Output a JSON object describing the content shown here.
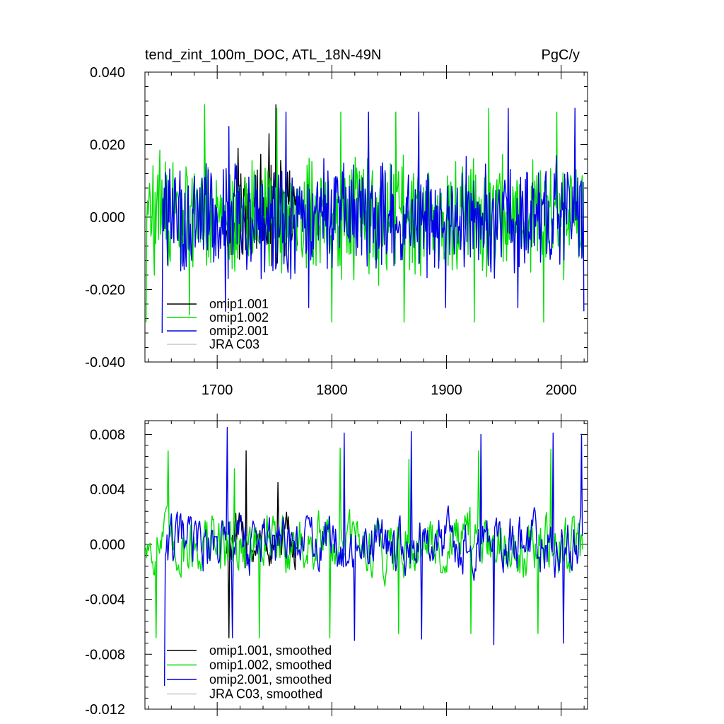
{
  "chart_data": [
    {
      "type": "line",
      "title_left": "tend_zint_100m_DOC, ATL_18N-49N",
      "title_right": "PgC/y",
      "xlim": [
        1637,
        2023
      ],
      "ylim": [
        -0.04,
        0.04
      ],
      "y_ticks": [
        -0.04,
        -0.02,
        0.0,
        0.02,
        0.04
      ],
      "y_tick_labels": [
        "-0.040",
        "-0.020",
        "0.000",
        "0.020",
        "0.040"
      ],
      "x_ticks": [
        1700,
        1800,
        1900,
        2000
      ],
      "x_tick_labels": [
        "1700",
        "1800",
        "1900",
        "2000"
      ],
      "legend_position": "lower-left",
      "series": [
        {
          "name": "omip1.001",
          "color": "#000000",
          "x_start": 1708,
          "x_end": 1770,
          "amplitude": 0.012,
          "peaks": [
            [
              1718,
              0.019
            ],
            [
              1735,
              0.013
            ],
            [
              1745,
              0.023
            ],
            [
              1751,
              0.031
            ]
          ]
        },
        {
          "name": "omip1.002",
          "color": "#00e000",
          "x_start": 1638,
          "x_end": 2019,
          "amplitude": 0.013,
          "peaks": [
            [
              1689,
              0.031
            ],
            [
              1752,
              0.03
            ],
            [
              1808,
              0.029
            ],
            [
              1856,
              0.029
            ],
            [
              1937,
              0.03
            ],
            [
              1996,
              0.029
            ]
          ],
          "troughs": [
            [
              1638,
              -0.029
            ],
            [
              1676,
              -0.027
            ],
            [
              1800,
              -0.029
            ],
            [
              1863,
              -0.029
            ],
            [
              1924,
              -0.029
            ],
            [
              1985,
              -0.029
            ]
          ]
        },
        {
          "name": "omip2.001",
          "color": "#0000e8",
          "x_start": 1652,
          "x_end": 2020,
          "amplitude": 0.012,
          "peaks": [
            [
              1710,
              0.025
            ],
            [
              1760,
              0.029
            ],
            [
              1832,
              0.029
            ],
            [
              1876,
              0.029
            ],
            [
              1954,
              0.03
            ],
            [
              2012,
              0.03
            ]
          ],
          "troughs": [
            [
              1652,
              -0.032
            ],
            [
              1707,
              -0.026
            ],
            [
              1780,
              -0.025
            ],
            [
              1899,
              -0.025
            ],
            [
              1962,
              -0.025
            ],
            [
              2020,
              -0.026
            ]
          ]
        },
        {
          "name": "JRA C03",
          "color": "#c8c8c8",
          "x_start": null,
          "x_end": null
        }
      ]
    },
    {
      "type": "line",
      "xlim": [
        1637,
        2023
      ],
      "ylim": [
        -0.012,
        0.009
      ],
      "y_ticks": [
        -0.012,
        -0.008,
        -0.004,
        0.0,
        0.004,
        0.008
      ],
      "y_tick_labels": [
        "-0.012",
        "-0.008",
        "-0.004",
        "0.000",
        "0.004",
        "0.008"
      ],
      "x_ticks": [
        1700,
        1800,
        1900,
        2000
      ],
      "legend_position": "lower-left",
      "series": [
        {
          "name": "omip1.001, smoothed",
          "color": "#000000",
          "x_start": 1708,
          "x_end": 1770,
          "amplitude": 0.002,
          "peaks": [
            [
              1725,
              0.0068
            ],
            [
              1753,
              0.0045
            ]
          ],
          "troughs": [
            [
              1710,
              -0.0068
            ]
          ]
        },
        {
          "name": "omip1.002, smoothed",
          "color": "#00e000",
          "x_start": 1637,
          "x_end": 2019,
          "amplitude": 0.0022,
          "peaks": [
            [
              1657,
              0.0068
            ],
            [
              1715,
              0.0055
            ],
            [
              1807,
              0.007
            ],
            [
              1867,
              0.0062
            ],
            [
              1928,
              0.0068
            ],
            [
              1991,
              0.0069
            ]
          ],
          "troughs": [
            [
              1647,
              -0.0068
            ],
            [
              1737,
              -0.0068
            ],
            [
              1798,
              -0.0068
            ],
            [
              1858,
              -0.0065
            ],
            [
              1921,
              -0.0065
            ],
            [
              1980,
              -0.0065
            ]
          ]
        },
        {
          "name": "omip2.001, smoothed",
          "color": "#0000e8",
          "x_start": 1654,
          "x_end": 2019,
          "amplitude": 0.0021,
          "peaks": [
            [
              1709,
              0.0085
            ],
            [
              1811,
              0.0081
            ],
            [
              1869,
              0.0082
            ],
            [
              1930,
              0.008
            ],
            [
              1993,
              0.0081
            ],
            [
              2018,
              0.008
            ]
          ],
          "troughs": [
            [
              1654,
              -0.0103
            ],
            [
              1713,
              -0.0068
            ],
            [
              1820,
              -0.007
            ],
            [
              1878,
              -0.0069
            ],
            [
              1941,
              -0.0073
            ],
            [
              2002,
              -0.0072
            ]
          ]
        },
        {
          "name": "JRA C03, smoothed",
          "color": "#c8c8c8",
          "x_start": null,
          "x_end": null
        }
      ]
    }
  ]
}
